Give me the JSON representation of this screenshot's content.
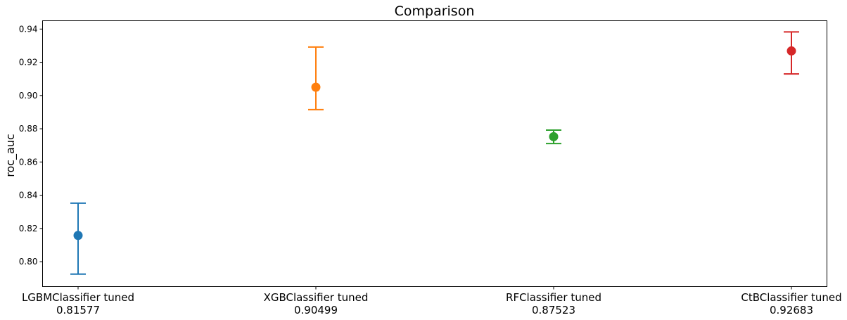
{
  "chart_data": {
    "type": "scatter",
    "title": "Comparison",
    "xlabel": "",
    "ylabel": "roc_auc",
    "ylim": [
      0.785,
      0.945
    ],
    "yticks": [
      "0.80",
      "0.82",
      "0.84",
      "0.86",
      "0.88",
      "0.90",
      "0.92",
      "0.94"
    ],
    "grid": false,
    "categories": [
      "LGBMClassifier tuned",
      "XGBClassifier tuned",
      "RFClassifier tuned",
      "CtBClassifier tuned"
    ],
    "score_labels": [
      "0.81577",
      "0.90499",
      "0.87523",
      "0.92683"
    ],
    "values": [
      0.81577,
      0.90499,
      0.87523,
      0.92683
    ],
    "error_low": [
      0.7925,
      0.8915,
      0.8711,
      0.913
    ],
    "error_high": [
      0.8352,
      0.9292,
      0.8792,
      0.9383
    ],
    "colors": [
      "#1f77b4",
      "#ff7f0e",
      "#2ca02c",
      "#d62728"
    ]
  }
}
